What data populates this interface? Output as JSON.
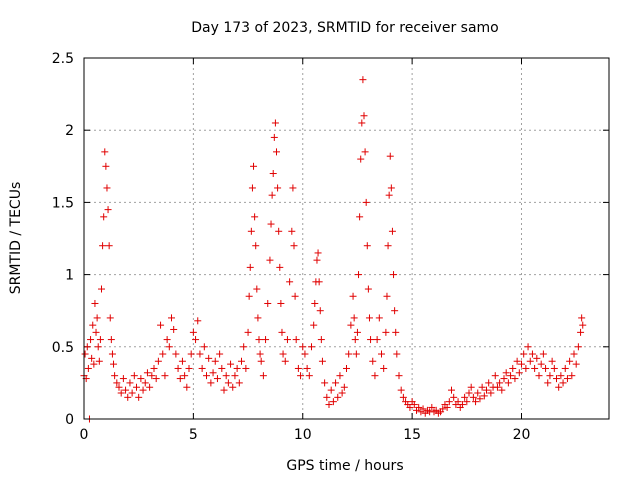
{
  "chart_data": {
    "type": "scatter",
    "title": "Day 173 of 2023, SRMTID for receiver samo",
    "xlabel": "GPS time / hours",
    "ylabel": "SRMTID / TECUs",
    "xlim": [
      0,
      24
    ],
    "ylim": [
      0,
      2.5
    ],
    "xticks": [
      0,
      5,
      10,
      15,
      20
    ],
    "yticks": [
      0,
      0.5,
      1,
      1.5,
      2,
      2.5
    ],
    "xtick_labels": [
      "0",
      "5",
      "10",
      "15",
      "20"
    ],
    "ytick_labels": [
      "0",
      "0.5",
      "1",
      "1.5",
      "2",
      "2.5"
    ],
    "grid": true,
    "marker": "+",
    "color": "#e00000",
    "series": [
      {
        "name": "samo",
        "points": [
          [
            0.0,
            0.3
          ],
          [
            0.05,
            0.45
          ],
          [
            0.1,
            0.28
          ],
          [
            0.15,
            0.5
          ],
          [
            0.2,
            0.35
          ],
          [
            0.25,
            0.0
          ],
          [
            0.3,
            0.55
          ],
          [
            0.35,
            0.42
          ],
          [
            0.4,
            0.65
          ],
          [
            0.45,
            0.38
          ],
          [
            0.5,
            0.8
          ],
          [
            0.55,
            0.6
          ],
          [
            0.6,
            0.7
          ],
          [
            0.65,
            0.5
          ],
          [
            0.7,
            0.4
          ],
          [
            0.75,
            0.55
          ],
          [
            0.8,
            0.9
          ],
          [
            0.85,
            1.2
          ],
          [
            0.9,
            1.4
          ],
          [
            0.95,
            1.85
          ],
          [
            1.0,
            1.75
          ],
          [
            1.05,
            1.6
          ],
          [
            1.1,
            1.45
          ],
          [
            1.15,
            1.2
          ],
          [
            1.2,
            0.7
          ],
          [
            1.25,
            0.55
          ],
          [
            1.3,
            0.45
          ],
          [
            1.35,
            0.38
          ],
          [
            1.4,
            0.3
          ],
          [
            1.5,
            0.25
          ],
          [
            1.6,
            0.22
          ],
          [
            1.7,
            0.18
          ],
          [
            1.8,
            0.28
          ],
          [
            1.9,
            0.2
          ],
          [
            2.0,
            0.15
          ],
          [
            2.1,
            0.25
          ],
          [
            2.2,
            0.18
          ],
          [
            2.3,
            0.3
          ],
          [
            2.4,
            0.22
          ],
          [
            2.5,
            0.15
          ],
          [
            2.6,
            0.28
          ],
          [
            2.7,
            0.2
          ],
          [
            2.8,
            0.25
          ],
          [
            2.9,
            0.32
          ],
          [
            3.0,
            0.22
          ],
          [
            3.1,
            0.3
          ],
          [
            3.2,
            0.35
          ],
          [
            3.3,
            0.28
          ],
          [
            3.4,
            0.4
          ],
          [
            3.5,
            0.65
          ],
          [
            3.6,
            0.45
          ],
          [
            3.7,
            0.3
          ],
          [
            3.8,
            0.55
          ],
          [
            3.9,
            0.5
          ],
          [
            4.0,
            0.7
          ],
          [
            4.1,
            0.62
          ],
          [
            4.2,
            0.45
          ],
          [
            4.3,
            0.35
          ],
          [
            4.4,
            0.28
          ],
          [
            4.5,
            0.4
          ],
          [
            4.6,
            0.3
          ],
          [
            4.7,
            0.22
          ],
          [
            4.8,
            0.35
          ],
          [
            4.9,
            0.45
          ],
          [
            5.0,
            0.6
          ],
          [
            5.1,
            0.55
          ],
          [
            5.2,
            0.68
          ],
          [
            5.3,
            0.45
          ],
          [
            5.4,
            0.35
          ],
          [
            5.5,
            0.5
          ],
          [
            5.6,
            0.3
          ],
          [
            5.7,
            0.42
          ],
          [
            5.8,
            0.25
          ],
          [
            5.9,
            0.32
          ],
          [
            6.0,
            0.4
          ],
          [
            6.1,
            0.28
          ],
          [
            6.2,
            0.45
          ],
          [
            6.3,
            0.35
          ],
          [
            6.4,
            0.2
          ],
          [
            6.5,
            0.3
          ],
          [
            6.6,
            0.25
          ],
          [
            6.7,
            0.38
          ],
          [
            6.8,
            0.22
          ],
          [
            6.9,
            0.3
          ],
          [
            7.0,
            0.35
          ],
          [
            7.1,
            0.25
          ],
          [
            7.2,
            0.4
          ],
          [
            7.3,
            0.5
          ],
          [
            7.4,
            0.35
          ],
          [
            7.5,
            0.6
          ],
          [
            7.55,
            0.85
          ],
          [
            7.6,
            1.05
          ],
          [
            7.65,
            1.3
          ],
          [
            7.7,
            1.6
          ],
          [
            7.75,
            1.75
          ],
          [
            7.8,
            1.4
          ],
          [
            7.85,
            1.2
          ],
          [
            7.9,
            0.9
          ],
          [
            7.95,
            0.7
          ],
          [
            8.0,
            0.55
          ],
          [
            8.05,
            0.45
          ],
          [
            8.1,
            0.4
          ],
          [
            8.2,
            0.3
          ],
          [
            8.3,
            0.55
          ],
          [
            8.4,
            0.8
          ],
          [
            8.5,
            1.1
          ],
          [
            8.55,
            1.35
          ],
          [
            8.6,
            1.55
          ],
          [
            8.65,
            1.7
          ],
          [
            8.7,
            1.95
          ],
          [
            8.75,
            2.05
          ],
          [
            8.8,
            1.85
          ],
          [
            8.85,
            1.6
          ],
          [
            8.9,
            1.3
          ],
          [
            8.95,
            1.05
          ],
          [
            9.0,
            0.8
          ],
          [
            9.05,
            0.6
          ],
          [
            9.1,
            0.45
          ],
          [
            9.2,
            0.4
          ],
          [
            9.3,
            0.55
          ],
          [
            9.4,
            0.95
          ],
          [
            9.5,
            1.3
          ],
          [
            9.55,
            1.6
          ],
          [
            9.6,
            1.2
          ],
          [
            9.65,
            0.85
          ],
          [
            9.7,
            0.55
          ],
          [
            9.8,
            0.35
          ],
          [
            9.9,
            0.3
          ],
          [
            10.0,
            0.5
          ],
          [
            10.1,
            0.45
          ],
          [
            10.2,
            0.35
          ],
          [
            10.3,
            0.3
          ],
          [
            10.4,
            0.5
          ],
          [
            10.5,
            0.65
          ],
          [
            10.55,
            0.8
          ],
          [
            10.6,
            0.95
          ],
          [
            10.65,
            1.1
          ],
          [
            10.7,
            1.15
          ],
          [
            10.75,
            0.95
          ],
          [
            10.8,
            0.75
          ],
          [
            10.85,
            0.55
          ],
          [
            10.9,
            0.4
          ],
          [
            11.0,
            0.25
          ],
          [
            11.1,
            0.15
          ],
          [
            11.2,
            0.1
          ],
          [
            11.3,
            0.2
          ],
          [
            11.4,
            0.12
          ],
          [
            11.5,
            0.25
          ],
          [
            11.6,
            0.15
          ],
          [
            11.7,
            0.3
          ],
          [
            11.8,
            0.18
          ],
          [
            11.9,
            0.22
          ],
          [
            12.0,
            0.35
          ],
          [
            12.1,
            0.45
          ],
          [
            12.2,
            0.65
          ],
          [
            12.3,
            0.85
          ],
          [
            12.35,
            0.7
          ],
          [
            12.4,
            0.55
          ],
          [
            12.45,
            0.45
          ],
          [
            12.5,
            0.6
          ],
          [
            12.55,
            1.0
          ],
          [
            12.6,
            1.4
          ],
          [
            12.65,
            1.8
          ],
          [
            12.7,
            2.05
          ],
          [
            12.75,
            2.35
          ],
          [
            12.8,
            2.1
          ],
          [
            12.85,
            1.85
          ],
          [
            12.9,
            1.5
          ],
          [
            12.95,
            1.2
          ],
          [
            13.0,
            0.9
          ],
          [
            13.05,
            0.7
          ],
          [
            13.1,
            0.55
          ],
          [
            13.2,
            0.4
          ],
          [
            13.3,
            0.3
          ],
          [
            13.4,
            0.55
          ],
          [
            13.5,
            0.7
          ],
          [
            13.6,
            0.45
          ],
          [
            13.7,
            0.35
          ],
          [
            13.8,
            0.6
          ],
          [
            13.85,
            0.85
          ],
          [
            13.9,
            1.2
          ],
          [
            13.95,
            1.55
          ],
          [
            14.0,
            1.82
          ],
          [
            14.05,
            1.6
          ],
          [
            14.1,
            1.3
          ],
          [
            14.15,
            1.0
          ],
          [
            14.2,
            0.75
          ],
          [
            14.25,
            0.6
          ],
          [
            14.3,
            0.45
          ],
          [
            14.4,
            0.3
          ],
          [
            14.5,
            0.2
          ],
          [
            14.6,
            0.15
          ],
          [
            14.7,
            0.12
          ],
          [
            14.8,
            0.1
          ],
          [
            14.9,
            0.08
          ],
          [
            15.0,
            0.12
          ],
          [
            15.1,
            0.1
          ],
          [
            15.2,
            0.06
          ],
          [
            15.3,
            0.08
          ],
          [
            15.4,
            0.05
          ],
          [
            15.5,
            0.07
          ],
          [
            15.6,
            0.04
          ],
          [
            15.7,
            0.06
          ],
          [
            15.8,
            0.05
          ],
          [
            15.9,
            0.08
          ],
          [
            16.0,
            0.05
          ],
          [
            16.1,
            0.06
          ],
          [
            16.2,
            0.04
          ],
          [
            16.3,
            0.05
          ],
          [
            16.4,
            0.07
          ],
          [
            16.5,
            0.1
          ],
          [
            16.6,
            0.08
          ],
          [
            16.7,
            0.12
          ],
          [
            16.8,
            0.2
          ],
          [
            16.9,
            0.15
          ],
          [
            17.0,
            0.1
          ],
          [
            17.1,
            0.12
          ],
          [
            17.2,
            0.08
          ],
          [
            17.3,
            0.1
          ],
          [
            17.4,
            0.15
          ],
          [
            17.5,
            0.12
          ],
          [
            17.6,
            0.18
          ],
          [
            17.7,
            0.22
          ],
          [
            17.8,
            0.15
          ],
          [
            17.9,
            0.12
          ],
          [
            18.0,
            0.18
          ],
          [
            18.1,
            0.14
          ],
          [
            18.2,
            0.22
          ],
          [
            18.3,
            0.16
          ],
          [
            18.4,
            0.2
          ],
          [
            18.5,
            0.25
          ],
          [
            18.6,
            0.18
          ],
          [
            18.7,
            0.22
          ],
          [
            18.8,
            0.3
          ],
          [
            18.9,
            0.22
          ],
          [
            19.0,
            0.25
          ],
          [
            19.1,
            0.2
          ],
          [
            19.2,
            0.28
          ],
          [
            19.3,
            0.32
          ],
          [
            19.4,
            0.25
          ],
          [
            19.5,
            0.3
          ],
          [
            19.6,
            0.35
          ],
          [
            19.7,
            0.28
          ],
          [
            19.8,
            0.4
          ],
          [
            19.9,
            0.32
          ],
          [
            20.0,
            0.38
          ],
          [
            20.1,
            0.45
          ],
          [
            20.2,
            0.35
          ],
          [
            20.3,
            0.5
          ],
          [
            20.4,
            0.4
          ],
          [
            20.5,
            0.45
          ],
          [
            20.6,
            0.35
          ],
          [
            20.7,
            0.42
          ],
          [
            20.8,
            0.3
          ],
          [
            20.9,
            0.38
          ],
          [
            21.0,
            0.45
          ],
          [
            21.1,
            0.35
          ],
          [
            21.2,
            0.25
          ],
          [
            21.3,
            0.3
          ],
          [
            21.4,
            0.4
          ],
          [
            21.5,
            0.35
          ],
          [
            21.6,
            0.28
          ],
          [
            21.7,
            0.22
          ],
          [
            21.8,
            0.3
          ],
          [
            21.9,
            0.25
          ],
          [
            22.0,
            0.35
          ],
          [
            22.1,
            0.28
          ],
          [
            22.2,
            0.4
          ],
          [
            22.3,
            0.3
          ],
          [
            22.4,
            0.45
          ],
          [
            22.5,
            0.38
          ],
          [
            22.6,
            0.5
          ],
          [
            22.7,
            0.6
          ],
          [
            22.75,
            0.7
          ],
          [
            22.8,
            0.65
          ]
        ]
      }
    ]
  }
}
